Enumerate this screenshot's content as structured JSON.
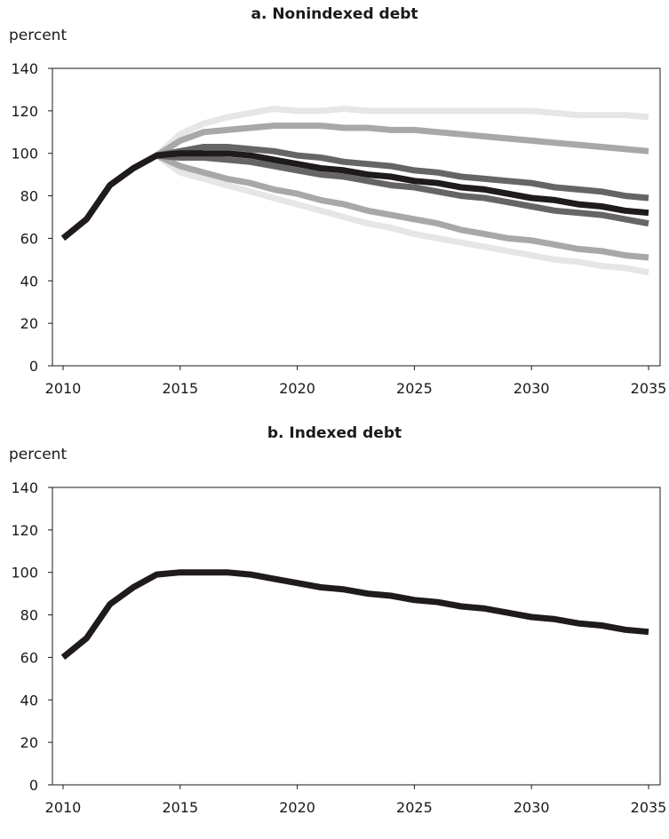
{
  "chart_data": [
    {
      "type": "line",
      "title": "a. Nonindexed debt",
      "ylabel": "percent",
      "xlabel": "",
      "xlim": [
        2010,
        2035
      ],
      "ylim": [
        0,
        140
      ],
      "x_ticks": [
        "2010",
        "2015",
        "2020",
        "2025",
        "2030",
        "2035"
      ],
      "y_ticks": [
        "0",
        "20",
        "40",
        "60",
        "80",
        "100",
        "120",
        "140"
      ],
      "grid": false,
      "legend": "none",
      "x": [
        2010,
        2011,
        2012,
        2013,
        2014,
        2015,
        2016,
        2017,
        2018,
        2019,
        2020,
        2021,
        2022,
        2023,
        2024,
        2025,
        2026,
        2027,
        2028,
        2029,
        2030,
        2031,
        2032,
        2033,
        2034,
        2035
      ],
      "series": [
        {
          "color": "#e6e6e6",
          "values": [
            null,
            null,
            null,
            null,
            99,
            109,
            114,
            117,
            119,
            121,
            120,
            120,
            121,
            120,
            120,
            120,
            120,
            120,
            120,
            120,
            120,
            119,
            118,
            118,
            118,
            117
          ]
        },
        {
          "color": "#e6e6e6",
          "values": [
            null,
            null,
            null,
            null,
            99,
            91,
            88,
            85,
            82,
            79,
            76,
            73,
            70,
            67,
            65,
            62,
            60,
            58,
            56,
            54,
            52,
            50,
            49,
            47,
            46,
            44
          ]
        },
        {
          "color": "#a8a8ab",
          "values": [
            null,
            null,
            null,
            null,
            99,
            106,
            110,
            111,
            112,
            113,
            113,
            113,
            112,
            112,
            111,
            111,
            110,
            109,
            108,
            107,
            106,
            105,
            104,
            103,
            102,
            101
          ]
        },
        {
          "color": "#a8a8ab",
          "values": [
            null,
            null,
            null,
            null,
            99,
            94,
            91,
            88,
            86,
            83,
            81,
            78,
            76,
            73,
            71,
            69,
            67,
            64,
            62,
            60,
            59,
            57,
            55,
            54,
            52,
            51
          ]
        },
        {
          "color": "#656567",
          "values": [
            null,
            null,
            null,
            null,
            99,
            101,
            103,
            103,
            102,
            101,
            99,
            98,
            96,
            95,
            94,
            92,
            91,
            89,
            88,
            87,
            86,
            84,
            83,
            82,
            80,
            79
          ]
        },
        {
          "color": "#656567",
          "values": [
            null,
            null,
            null,
            null,
            99,
            98,
            98,
            97,
            96,
            94,
            92,
            90,
            89,
            87,
            85,
            84,
            82,
            80,
            79,
            77,
            75,
            73,
            72,
            71,
            69,
            67
          ]
        },
        {
          "color": "#1f1a1b",
          "values": [
            60,
            69,
            85,
            93,
            99,
            100,
            100,
            100,
            99,
            97,
            95,
            93,
            92,
            90,
            89,
            87,
            86,
            84,
            83,
            81,
            79,
            78,
            76,
            75,
            73,
            72
          ]
        }
      ]
    },
    {
      "type": "line",
      "title": "b. Indexed debt",
      "ylabel": "percent",
      "xlabel": "",
      "xlim": [
        2010,
        2035
      ],
      "ylim": [
        0,
        140
      ],
      "x_ticks": [
        "2010",
        "2015",
        "2020",
        "2025",
        "2030",
        "2035"
      ],
      "y_ticks": [
        "0",
        "20",
        "40",
        "60",
        "80",
        "100",
        "120",
        "140"
      ],
      "grid": false,
      "legend": "none",
      "x": [
        2010,
        2011,
        2012,
        2013,
        2014,
        2015,
        2016,
        2017,
        2018,
        2019,
        2020,
        2021,
        2022,
        2023,
        2024,
        2025,
        2026,
        2027,
        2028,
        2029,
        2030,
        2031,
        2032,
        2033,
        2034,
        2035
      ],
      "series": [
        {
          "color": "#1f1a1b",
          "values": [
            60,
            69,
            85,
            93,
            99,
            100,
            100,
            100,
            99,
            97,
            95,
            93,
            92,
            90,
            89,
            87,
            86,
            84,
            83,
            81,
            79,
            78,
            76,
            75,
            73,
            72
          ]
        }
      ]
    }
  ]
}
